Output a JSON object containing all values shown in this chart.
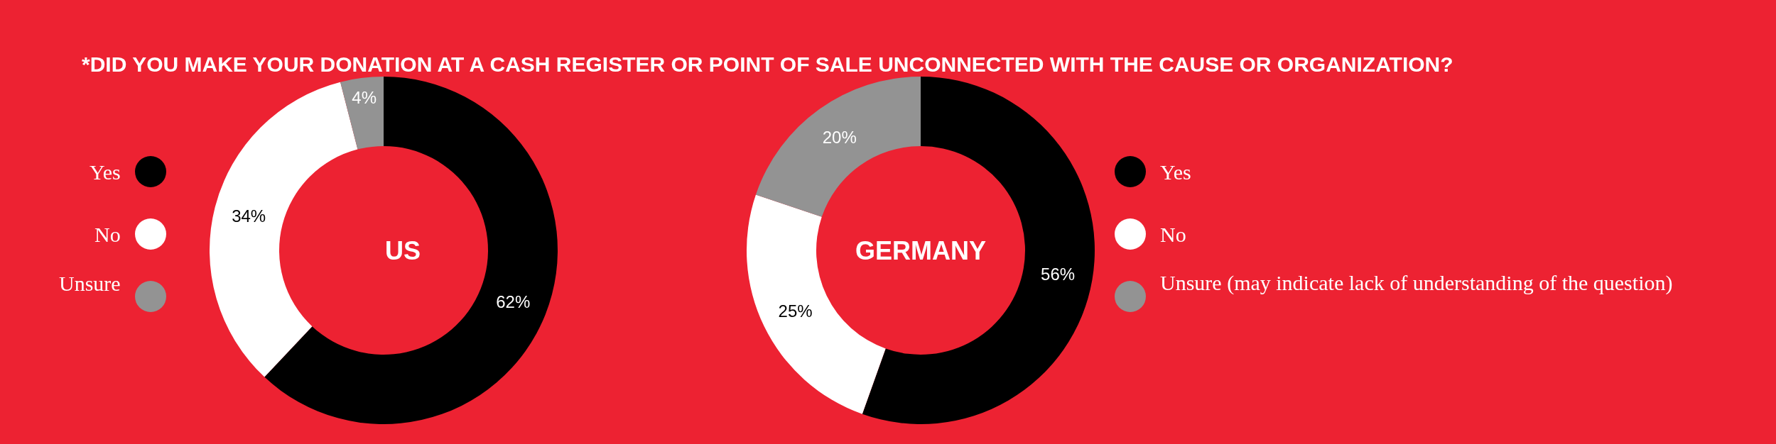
{
  "chart_data": [
    {
      "type": "donut",
      "title": "*DID YOU MAKE YOUR DONATION AT A CASH REGISTER OR POINT OF SALE UNCONNECTED WITH THE CAUSE OR ORGANIZATION?",
      "annotations": [
        "US"
      ],
      "categories": [
        "Yes",
        "No",
        "Unsure"
      ],
      "values": [
        62,
        34,
        4
      ],
      "value_labels": [
        "62%",
        "34%",
        "4%"
      ],
      "colors": [
        "#000000",
        "#ffffff",
        "#939393"
      ],
      "legend": "left"
    },
    {
      "type": "donut",
      "annotations": [
        "GERMANY"
      ],
      "categories": [
        "Yes",
        "No",
        "Unsure (may indicate lack of understanding of the question)"
      ],
      "values": [
        56,
        25,
        20
      ],
      "value_labels": [
        "56%",
        "25%",
        "20%"
      ],
      "colors": [
        "#000000",
        "#ffffff",
        "#939393"
      ],
      "legend": "right"
    }
  ]
}
